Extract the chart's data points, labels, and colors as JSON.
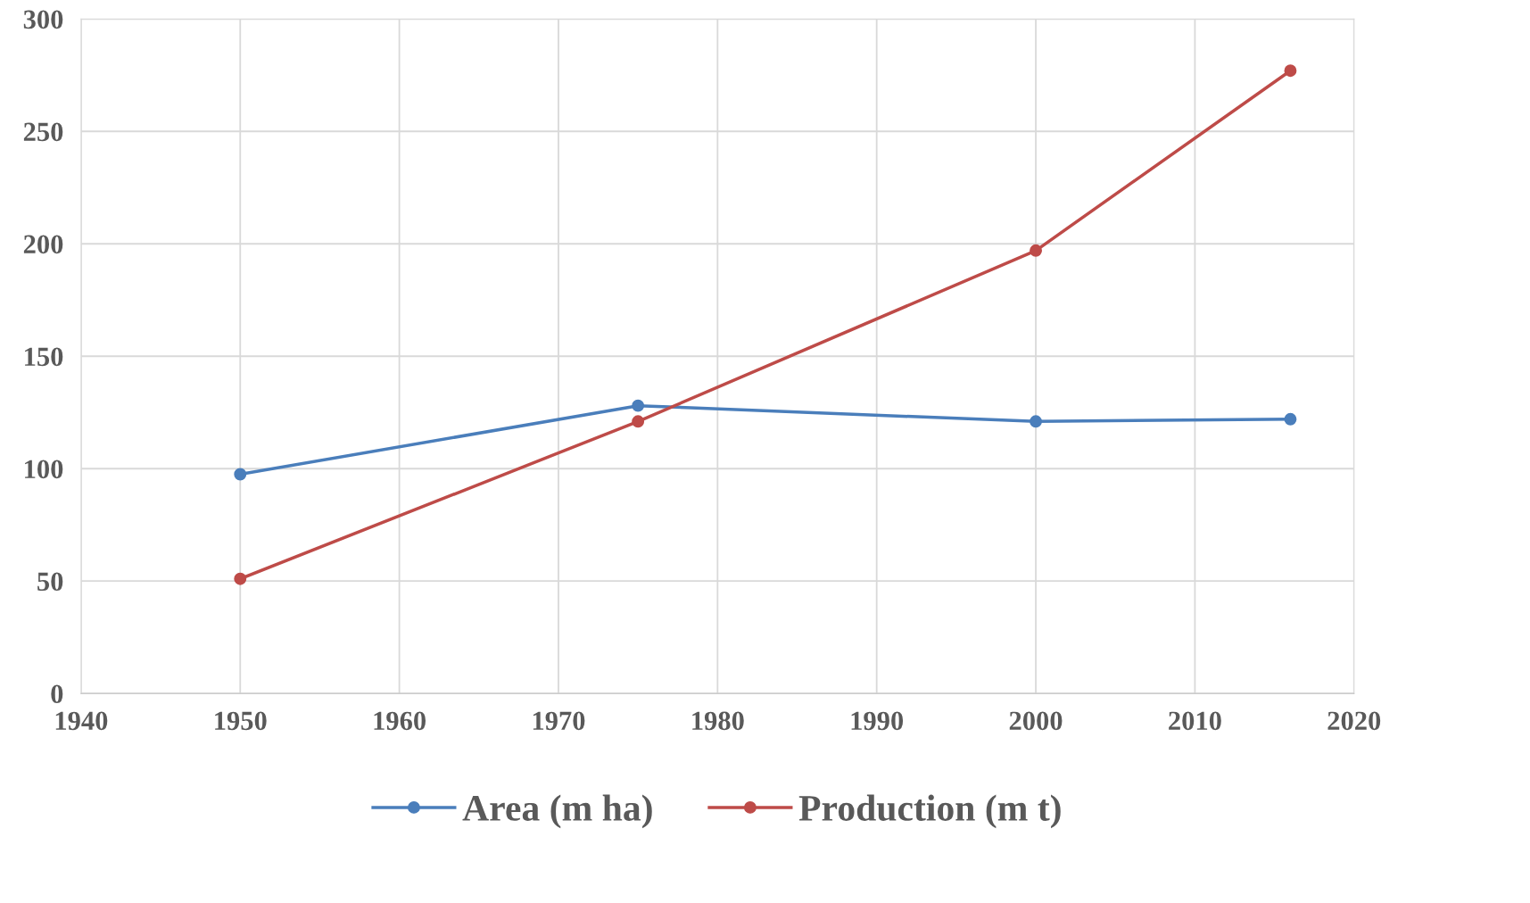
{
  "chart_data": {
    "type": "line",
    "x": [
      1950,
      1975,
      2000,
      2016
    ],
    "series": [
      {
        "name": "Area (m ha)",
        "color": "#4a7ebb",
        "values": [
          97.5,
          128,
          121,
          122
        ]
      },
      {
        "name": "Production (m t)",
        "color": "#be4b48",
        "values": [
          51,
          121,
          197,
          277
        ]
      }
    ],
    "xlim": [
      1940,
      2020
    ],
    "xticks": [
      1940,
      1950,
      1960,
      1970,
      1980,
      1990,
      2000,
      2010,
      2020
    ],
    "ylim": [
      0,
      300
    ],
    "yticks": [
      0,
      50,
      100,
      150,
      200,
      250,
      300
    ],
    "grid": true,
    "legend": "bottom",
    "marker": "circle",
    "line_style": "solid"
  }
}
